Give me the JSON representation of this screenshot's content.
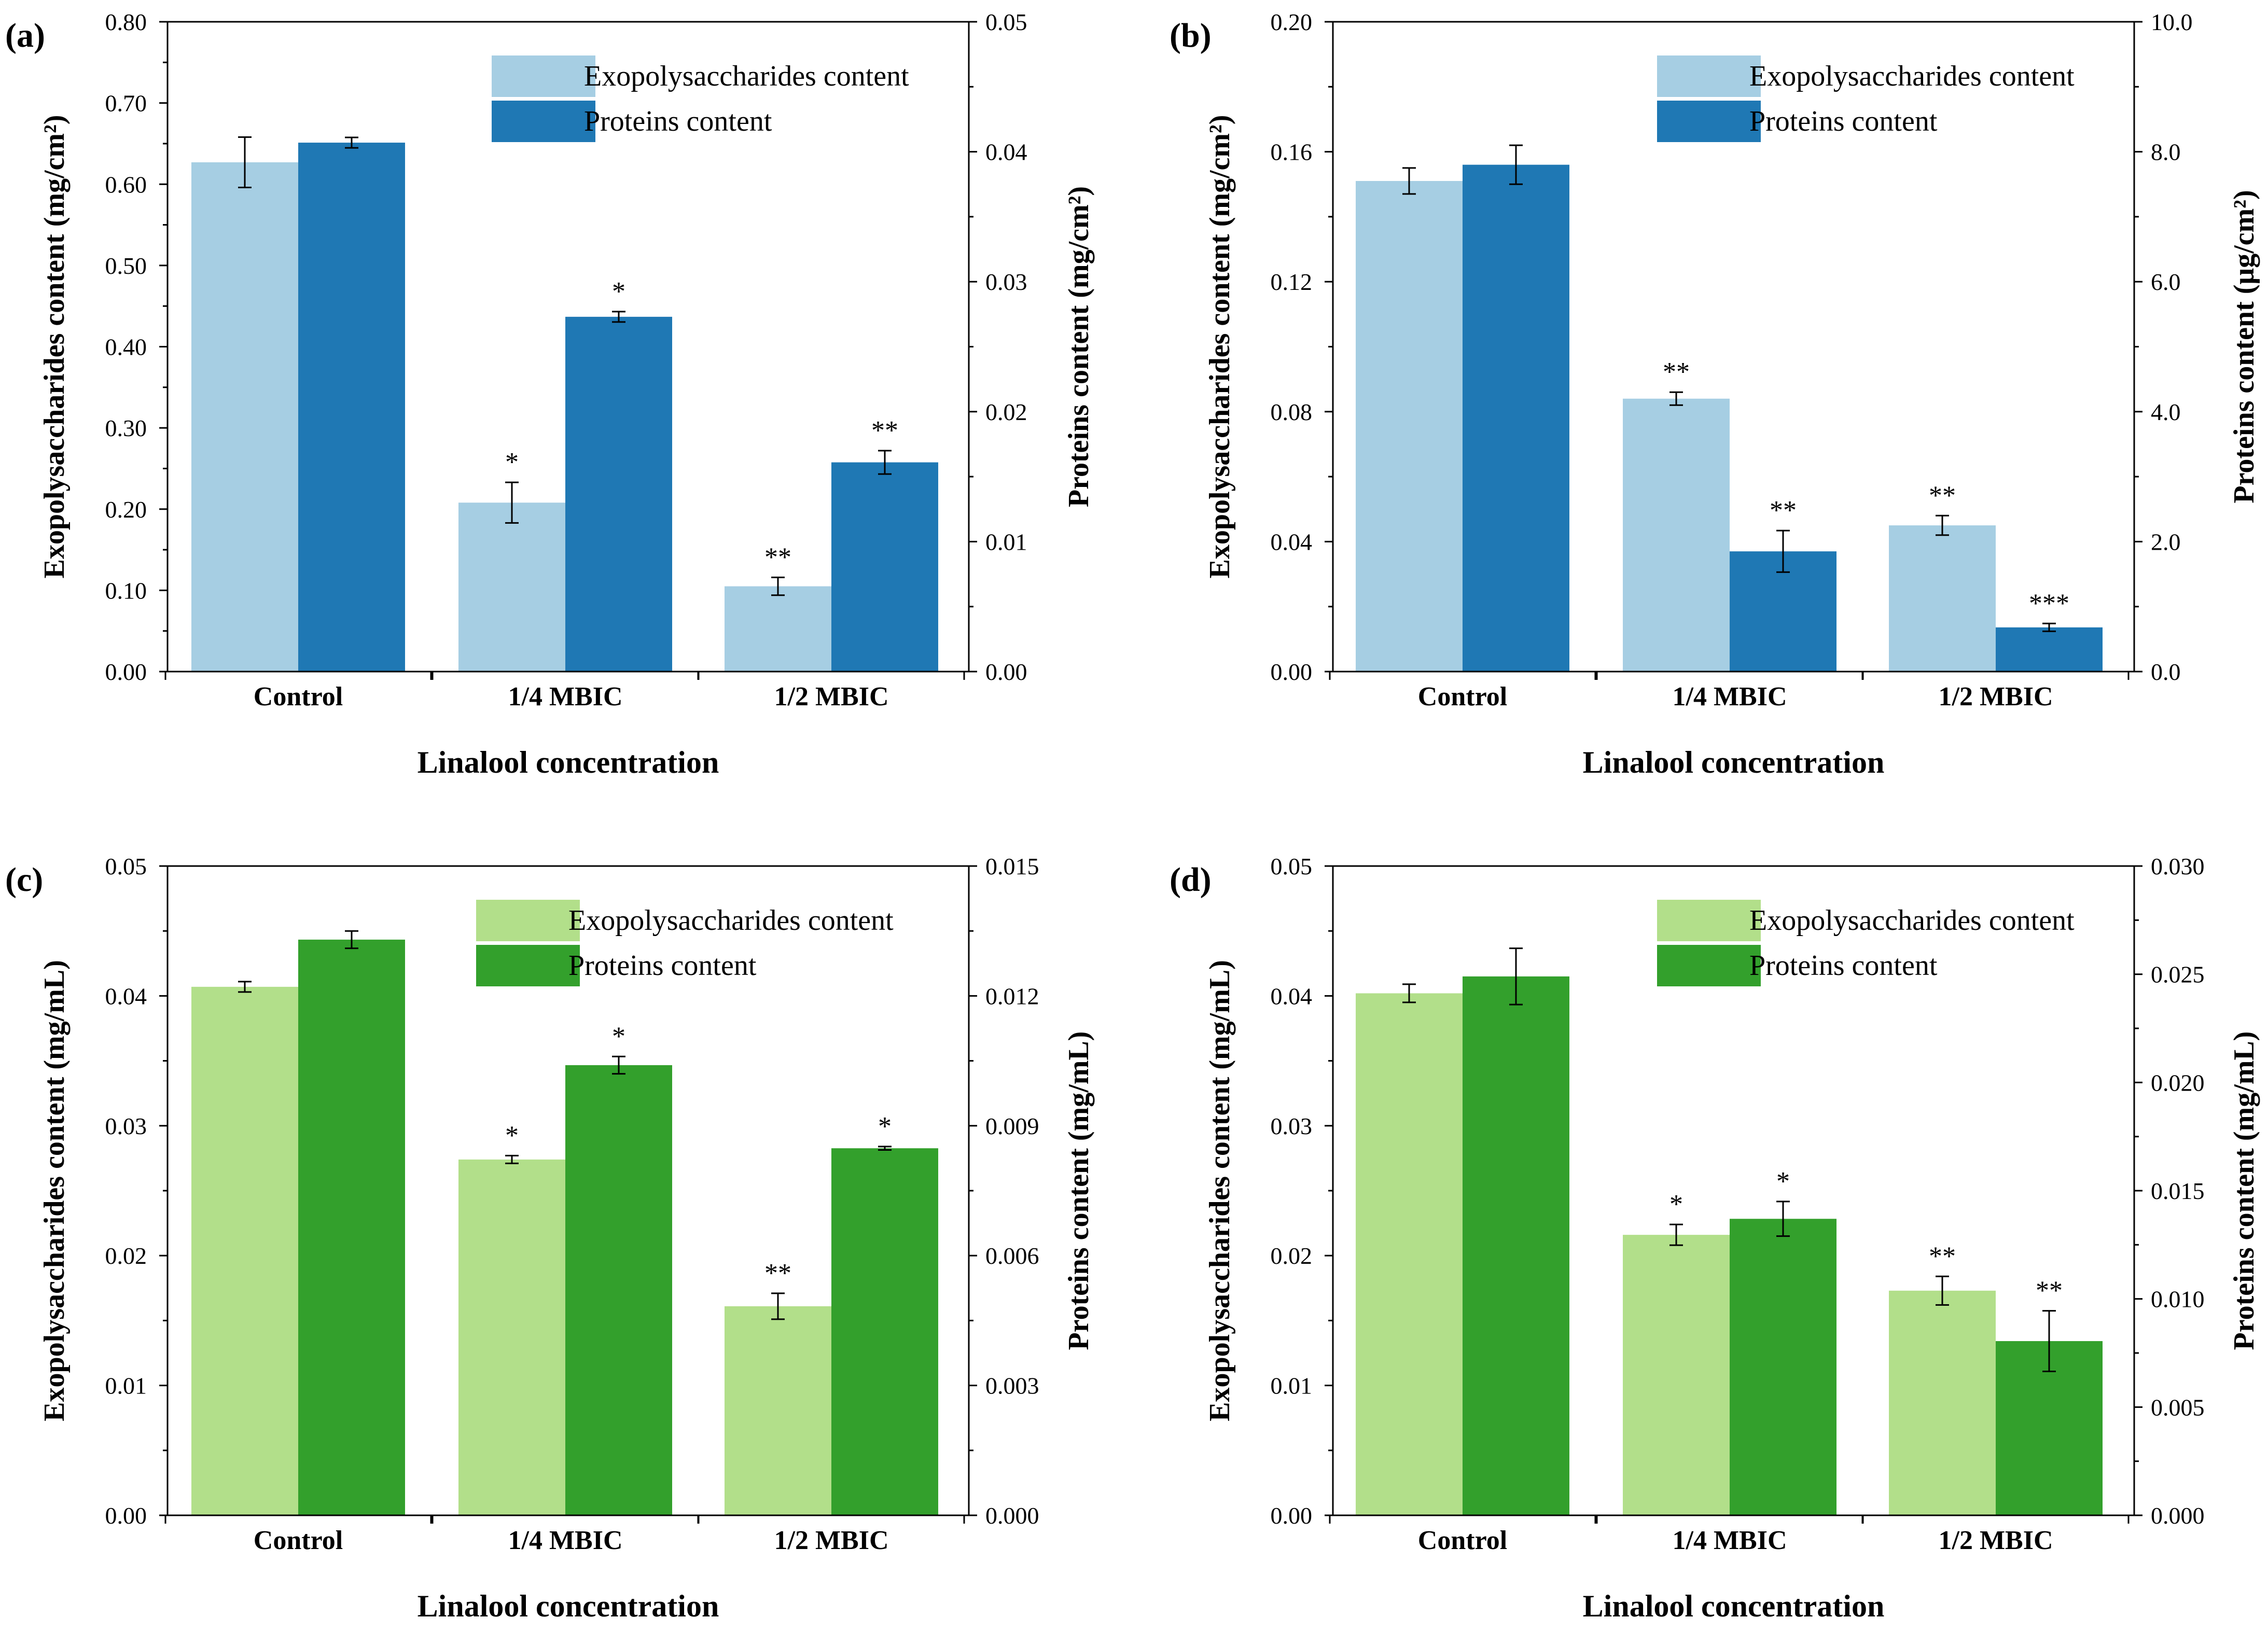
{
  "chart_data": [
    {
      "type": "bar",
      "panel_label": "(a)",
      "categories": [
        "Control",
        "1/4 MBIC",
        "1/2 MBIC"
      ],
      "xlabel": "Linalool concentration",
      "ylabel_left": "Exopolysaccharides content (mg/cm²)",
      "ylabel_right": "Proteins content (mg/cm²)",
      "ylim_left": [
        0,
        0.8
      ],
      "ylim_right": [
        0,
        0.05
      ],
      "yticks_left": [
        "0.00",
        "0.10",
        "0.20",
        "0.30",
        "0.40",
        "0.50",
        "0.60",
        "0.70",
        "0.80"
      ],
      "yticks_right": [
        "0.00",
        "0.01",
        "0.02",
        "0.03",
        "0.04",
        "0.05"
      ],
      "series": [
        {
          "name": "Exopolysaccharides content",
          "axis": "left",
          "color": "#a6cee3",
          "values": [
            0.627,
            0.208,
            0.105
          ],
          "errors": [
            0.031,
            0.025,
            0.011
          ],
          "stars": [
            "",
            "*",
            "**"
          ]
        },
        {
          "name": "Proteins content",
          "axis": "right",
          "color": "#1f78b4",
          "values": [
            0.0407,
            0.0273,
            0.0161
          ],
          "errors": [
            0.0004,
            0.0004,
            0.0009
          ],
          "stars": [
            "",
            "*",
            "**"
          ]
        }
      ]
    },
    {
      "type": "bar",
      "panel_label": "(b)",
      "categories": [
        "Control",
        "1/4 MBIC",
        "1/2 MBIC"
      ],
      "xlabel": "Linalool concentration",
      "ylabel_left": "Exopolysaccharides content (mg/cm²)",
      "ylabel_right": "Proteins content (μg/cm²)",
      "ylim_left": [
        0,
        0.2
      ],
      "ylim_right": [
        0,
        10
      ],
      "yticks_left": [
        "0.00",
        "0.04",
        "0.08",
        "0.12",
        "0.16",
        "0.20"
      ],
      "yticks_right": [
        "0.0",
        "2.0",
        "4.0",
        "6.0",
        "8.0",
        "10.0"
      ],
      "series": [
        {
          "name": "Exopolysaccharides content",
          "axis": "left",
          "color": "#a6cee3",
          "values": [
            0.151,
            0.084,
            0.045
          ],
          "errors": [
            0.004,
            0.002,
            0.003
          ],
          "stars": [
            "",
            "**",
            "**"
          ]
        },
        {
          "name": "Proteins content",
          "axis": "right",
          "color": "#1f78b4",
          "values": [
            7.8,
            1.85,
            0.68
          ],
          "errors": [
            0.3,
            0.32,
            0.06
          ],
          "stars": [
            "",
            "**",
            "***"
          ]
        }
      ]
    },
    {
      "type": "bar",
      "panel_label": "(c)",
      "categories": [
        "Control",
        "1/4 MBIC",
        "1/2 MBIC"
      ],
      "xlabel": "Linalool concentration",
      "ylabel_left": "Exopolysaccharides content (mg/mL)",
      "ylabel_right": "Proteins content (mg/mL)",
      "ylim_left": [
        0,
        0.05
      ],
      "ylim_right": [
        0,
        0.015
      ],
      "yticks_left": [
        "0.00",
        "0.01",
        "0.02",
        "0.03",
        "0.04",
        "0.05"
      ],
      "yticks_right": [
        "0.000",
        "0.003",
        "0.006",
        "0.009",
        "0.012",
        "0.015"
      ],
      "series": [
        {
          "name": "Exopolysaccharides content",
          "axis": "left",
          "color": "#b2df8a",
          "values": [
            0.0407,
            0.0274,
            0.0161
          ],
          "errors": [
            0.0004,
            0.0003,
            0.001
          ],
          "stars": [
            "",
            "*",
            "**"
          ]
        },
        {
          "name": "Proteins content",
          "axis": "right",
          "color": "#33a02c",
          "values": [
            0.0133,
            0.0104,
            0.00848
          ],
          "errors": [
            0.0002,
            0.0002,
            4e-05
          ],
          "stars": [
            "",
            "*",
            "*"
          ]
        }
      ]
    },
    {
      "type": "bar",
      "panel_label": "(d)",
      "categories": [
        "Control",
        "1/4 MBIC",
        "1/2 MBIC"
      ],
      "xlabel": "Linalool concentration",
      "ylabel_left": "Exopolysaccharides content (mg/mL)",
      "ylabel_right": "Proteins content (mg/mL)",
      "ylim_left": [
        0,
        0.05
      ],
      "ylim_right": [
        0,
        0.03
      ],
      "yticks_left": [
        "0.00",
        "0.01",
        "0.02",
        "0.03",
        "0.04",
        "0.05"
      ],
      "yticks_right": [
        "0.000",
        "0.005",
        "0.010",
        "0.015",
        "0.020",
        "0.025",
        "0.030"
      ],
      "series": [
        {
          "name": "Exopolysaccharides content",
          "axis": "left",
          "color": "#b2df8a",
          "values": [
            0.0402,
            0.0216,
            0.0173
          ],
          "errors": [
            0.0007,
            0.0008,
            0.0011
          ],
          "stars": [
            "",
            "*",
            "**"
          ]
        },
        {
          "name": "Proteins content",
          "axis": "right",
          "color": "#33a02c",
          "values": [
            0.0249,
            0.0137,
            0.00805
          ],
          "errors": [
            0.0013,
            0.0008,
            0.0014
          ],
          "stars": [
            "",
            "*",
            "**"
          ]
        }
      ]
    }
  ]
}
